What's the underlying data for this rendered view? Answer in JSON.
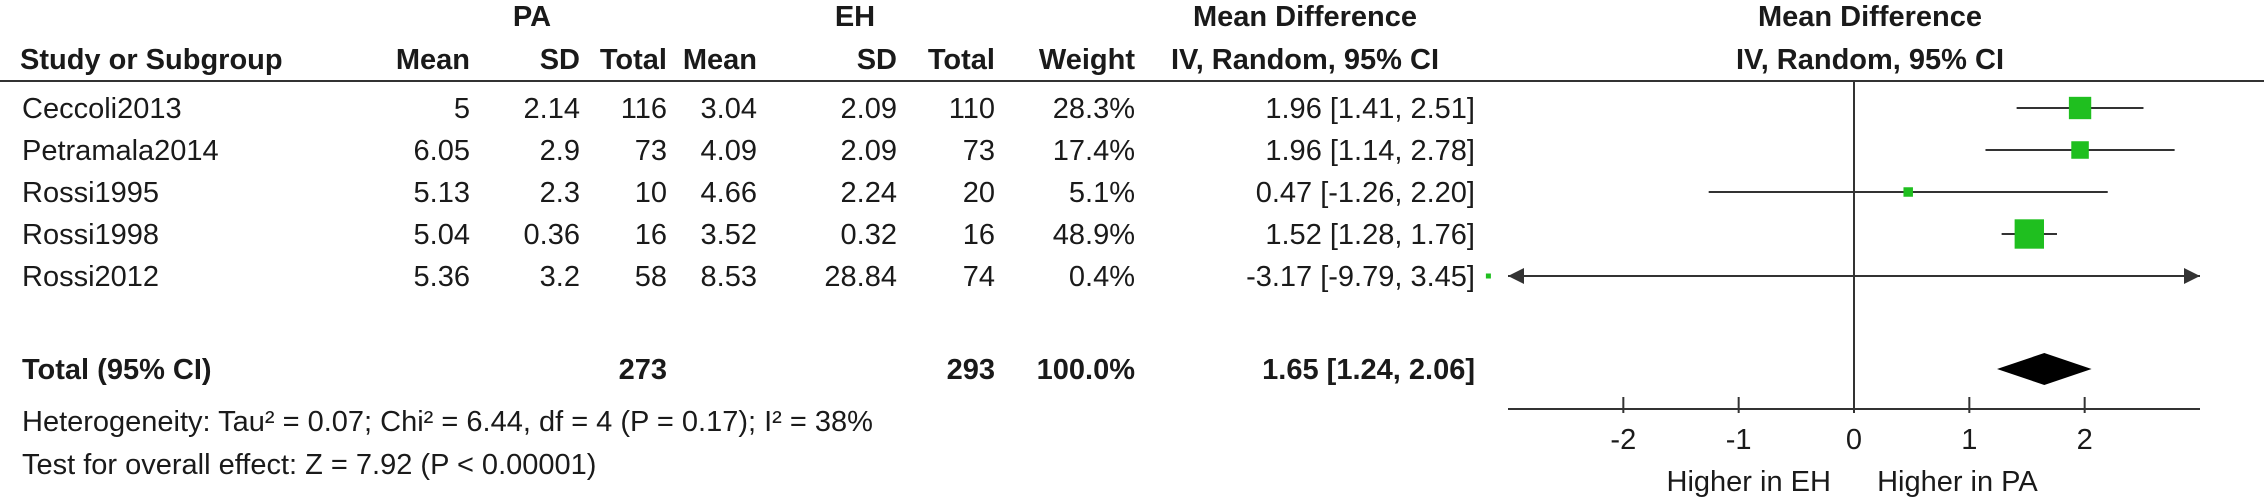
{
  "header": {
    "group1": "PA",
    "group2": "EH",
    "effect_group": "Mean Difference",
    "plot_group": "Mean Difference",
    "col_study": "Study or Subgroup",
    "col_mean1": "Mean",
    "col_sd1": "SD",
    "col_total1": "Total",
    "col_mean2": "Mean",
    "col_sd2": "SD",
    "col_total2": "Total",
    "col_weight": "Weight",
    "col_effect": "IV, Random, 95% CI",
    "plot_method": "IV, Random, 95% CI"
  },
  "studies": [
    {
      "name": "Ceccoli2013",
      "mean1": "5",
      "sd1": "2.14",
      "total1": "116",
      "mean2": "3.04",
      "sd2": "2.09",
      "total2": "110",
      "weight": "28.3%",
      "ci_text": "1.96 [1.41, 2.51]"
    },
    {
      "name": "Petramala2014",
      "mean1": "6.05",
      "sd1": "2.9",
      "total1": "73",
      "mean2": "4.09",
      "sd2": "2.09",
      "total2": "73",
      "weight": "17.4%",
      "ci_text": "1.96 [1.14, 2.78]"
    },
    {
      "name": "Rossi1995",
      "mean1": "5.13",
      "sd1": "2.3",
      "total1": "10",
      "mean2": "4.66",
      "sd2": "2.24",
      "total2": "20",
      "weight": "5.1%",
      "ci_text": "0.47 [-1.26, 2.20]"
    },
    {
      "name": "Rossi1998",
      "mean1": "5.04",
      "sd1": "0.36",
      "total1": "16",
      "mean2": "3.52",
      "sd2": "0.32",
      "total2": "16",
      "weight": "48.9%",
      "ci_text": "1.52 [1.28, 1.76]"
    },
    {
      "name": "Rossi2012",
      "mean1": "5.36",
      "sd1": "3.2",
      "total1": "58",
      "mean2": "8.53",
      "sd2": "28.84",
      "total2": "74",
      "weight": "0.4%",
      "ci_text": "-3.17 [-9.79, 3.45]"
    }
  ],
  "total": {
    "label": "Total (95% CI)",
    "total1": "273",
    "total2": "293",
    "weight": "100.0%",
    "ci_text": "1.65 [1.24, 2.06]"
  },
  "heterogeneity": "Heterogeneity: Tau² = 0.07; Chi² = 6.44, df = 4 (P = 0.17); I² = 38%",
  "overall_effect": "Test for overall effect: Z = 7.92 (P < 0.00001)",
  "colors": {
    "marker": "#1fbf1f",
    "diamond": "#000000",
    "line": "#333333",
    "text": "#1a1a1a"
  },
  "chart_data": {
    "type": "forest",
    "xlim": [
      -3,
      3
    ],
    "xticks": [
      -2,
      -1,
      0,
      1,
      2
    ],
    "xlabel_left": "Higher in EH",
    "xlabel_right": "Higher in PA",
    "null_line": 0,
    "series": [
      {
        "name": "Ceccoli2013",
        "estimate": 1.96,
        "ci_low": 1.41,
        "ci_high": 2.51,
        "weight": 28.3
      },
      {
        "name": "Petramala2014",
        "estimate": 1.96,
        "ci_low": 1.14,
        "ci_high": 2.78,
        "weight": 17.4
      },
      {
        "name": "Rossi1995",
        "estimate": 0.47,
        "ci_low": -1.26,
        "ci_high": 2.2,
        "weight": 5.1
      },
      {
        "name": "Rossi1998",
        "estimate": 1.52,
        "ci_low": 1.28,
        "ci_high": 1.76,
        "weight": 48.9
      },
      {
        "name": "Rossi2012",
        "estimate": -3.17,
        "ci_low": -9.79,
        "ci_high": 3.45,
        "weight": 0.4
      }
    ],
    "pooled": {
      "estimate": 1.65,
      "ci_low": 1.24,
      "ci_high": 2.06
    }
  }
}
